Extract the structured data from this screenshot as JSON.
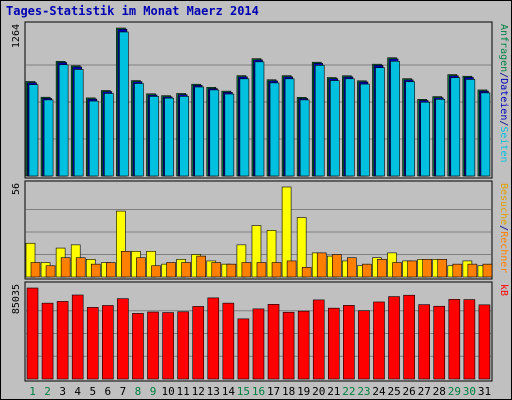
{
  "chart_data": {
    "type": "bar",
    "title": "Tages-Statistik im Monat Maerz 2014",
    "categories": [
      "1",
      "2",
      "3",
      "4",
      "5",
      "6",
      "7",
      "8",
      "9",
      "10",
      "11",
      "12",
      "13",
      "14",
      "15",
      "16",
      "17",
      "18",
      "19",
      "20",
      "21",
      "22",
      "23",
      "24",
      "25",
      "26",
      "27",
      "28",
      "29",
      "30",
      "31"
    ],
    "weekend_days": [
      "1",
      "2",
      "8",
      "9",
      "15",
      "16",
      "22",
      "23",
      "29",
      "30"
    ],
    "panels": [
      {
        "name": "top",
        "ymax_label": "1264",
        "ylim": [
          0,
          1264
        ],
        "right_labels": [
          {
            "text": "Anfragen",
            "color": "#008040"
          },
          {
            "text": "/",
            "color": "#000080"
          },
          {
            "text": "Dateien",
            "color": "#0000b4"
          },
          {
            "text": "/",
            "color": "#000080"
          },
          {
            "text": "Seiten",
            "color": "#00c0e0"
          }
        ],
        "series": [
          {
            "name": "Anfragen",
            "color": "#008040",
            "values": [
              807,
              673,
              979,
              941,
              667,
              730,
              1264,
              815,
              702,
              686,
              705,
              784,
              757,
              725,
              857,
              1002,
              822,
              857,
              672,
              972,
              841,
              856,
              813,
              955,
              1010,
              831,
              655,
              678,
              866,
              852,
              735
            ]
          },
          {
            "name": "Dateien",
            "color": "#0000b4",
            "values": [
              797,
              663,
              969,
              931,
              657,
              720,
              1254,
              805,
              692,
              676,
              695,
              774,
              747,
              715,
              847,
              992,
              812,
              847,
              662,
              962,
              831,
              846,
              803,
              945,
              1000,
              821,
              645,
              668,
              856,
              842,
              725
            ]
          },
          {
            "name": "Seiten",
            "color": "#00c0e0",
            "values": [
              780,
              650,
              950,
              910,
              640,
              705,
              1230,
              790,
              680,
              665,
              680,
              760,
              735,
              700,
              830,
              975,
              795,
              830,
              650,
              945,
              815,
              830,
              785,
              925,
              980,
              805,
              630,
              655,
              840,
              825,
              710
            ]
          }
        ]
      },
      {
        "name": "mid",
        "ymax_label": "56",
        "ylim": [
          0,
          56
        ],
        "right_labels": [
          {
            "text": "Besuche",
            "color": "#e0a000"
          },
          {
            "text": "/",
            "color": "#000080"
          },
          {
            "text": "Rechner",
            "color": "#ff8000"
          }
        ],
        "series": [
          {
            "name": "Besuche",
            "color": "#ffff00",
            "values": [
              21,
              9,
              18,
              20,
              11,
              9,
              41,
              16,
              16,
              8,
              11,
              14,
              10,
              8,
              20,
              32,
              29,
              56,
              37,
              15,
              13,
              10,
              7,
              12,
              15,
              10,
              11,
              11,
              7,
              10,
              7
            ]
          },
          {
            "name": "Rechner",
            "color": "#ff8000",
            "values": [
              9,
              7,
              12,
              12,
              8,
              9,
              16,
              12,
              7,
              9,
              9,
              13,
              9,
              8,
              9,
              9,
              9,
              10,
              6,
              15,
              14,
              12,
              8,
              11,
              9,
              10,
              11,
              11,
              8,
              8,
              8
            ]
          }
        ]
      },
      {
        "name": "bottom",
        "ymax_label": "85035",
        "ylim": [
          0,
          85035
        ],
        "right_labels": [
          {
            "text": "kB",
            "color": "#ff0000"
          }
        ],
        "series": [
          {
            "name": "kB",
            "color": "#ff0000",
            "values": [
              85035,
              70885,
              72500,
              78500,
              66900,
              68700,
              75100,
              61300,
              62600,
              62100,
              62800,
              67800,
              75800,
              70900,
              56200,
              65500,
              69800,
              62400,
              63400,
              73900,
              66200,
              68800,
              63800,
              72000,
              77000,
              78300,
              69500,
              68000,
              74400,
              74200,
              69300
            ]
          }
        ]
      }
    ]
  }
}
